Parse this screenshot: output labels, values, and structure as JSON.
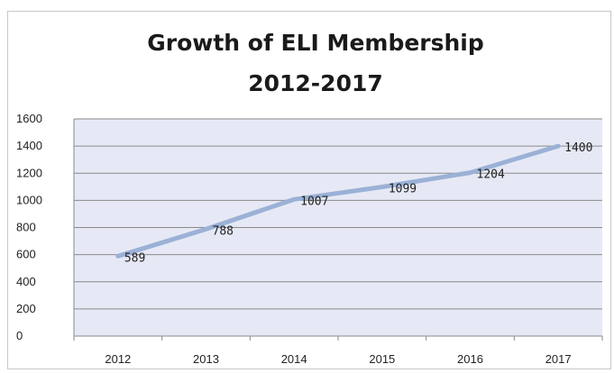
{
  "chart_data": {
    "type": "line",
    "title": [
      "Growth of ELI Membership",
      "2012-2017"
    ],
    "xlabel": "",
    "ylabel": "",
    "categories": [
      "2012",
      "2013",
      "2014",
      "2015",
      "2016",
      "2017"
    ],
    "series": [
      {
        "values": [
          589,
          788,
          1007,
          1099,
          1204,
          1400
        ]
      }
    ],
    "data_labels": [
      "589",
      "788",
      "1007",
      "1099",
      "1204",
      "1400"
    ],
    "ylim": [
      0,
      1600
    ],
    "yticks": [
      0,
      200,
      400,
      600,
      800,
      1000,
      1200,
      1400,
      1600
    ],
    "grid": "horizontal",
    "legend": "none",
    "colors": {
      "line": "#9bb1d6",
      "plot_background": "#e6e9f5",
      "gridline": "#8a8a8a",
      "axis": "#8a8a8a"
    }
  }
}
